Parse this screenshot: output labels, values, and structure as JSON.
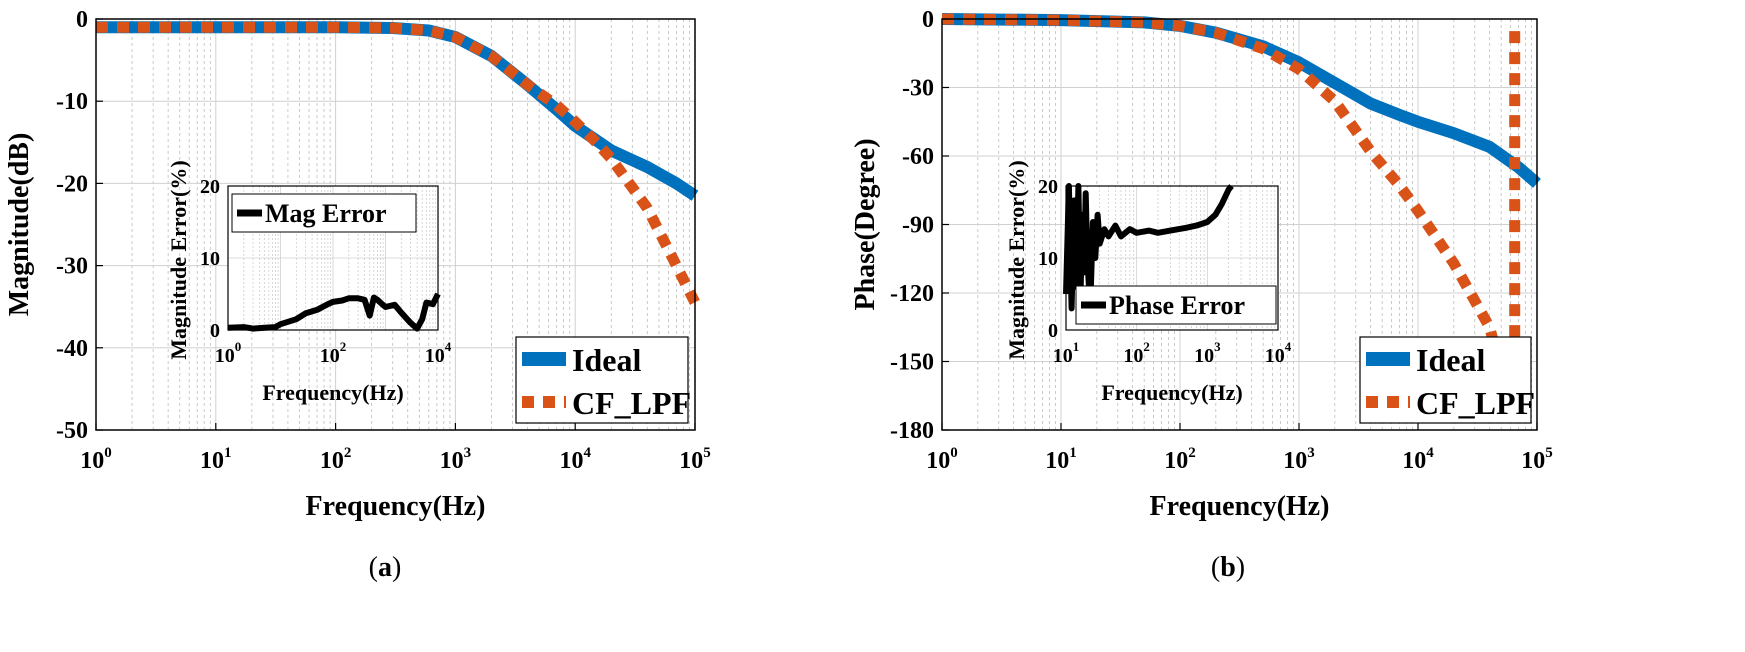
{
  "chart_data": [
    {
      "id": "a",
      "type": "line",
      "caption_prefix": "(",
      "caption_letter": "a",
      "caption_suffix": ")",
      "xlabel": "Frequency(Hz)",
      "ylabel": "Magnitude(dB)",
      "xscale": "log",
      "xlim": [
        1,
        100000
      ],
      "ylim": [
        -50,
        0
      ],
      "yticks": [
        0,
        -10,
        -20,
        -30,
        -40,
        -50
      ],
      "xtick_exponents": [
        0,
        1,
        2,
        3,
        4,
        5
      ],
      "xtick_base": "10",
      "grid": true,
      "legend_position": "bottom-right",
      "series": [
        {
          "name": "Ideal",
          "color": "#0072BD",
          "style": "solid",
          "x": [
            1,
            10,
            100,
            300,
            600,
            1000,
            2000,
            4000,
            7000,
            10000,
            20000,
            40000,
            70000,
            100000
          ],
          "y": [
            -1,
            -1,
            -1,
            -1.1,
            -1.4,
            -2.2,
            -4.5,
            -8,
            -11,
            -13,
            -16,
            -18,
            -20,
            -21.5
          ]
        },
        {
          "name": "CF_LPF",
          "color": "#D95319",
          "style": "dotted",
          "x": [
            1,
            10,
            100,
            300,
            600,
            1000,
            2000,
            4000,
            7000,
            10000,
            15000,
            20000,
            40000,
            70000,
            100000
          ],
          "y": [
            -1,
            -1,
            -1,
            -1.1,
            -1.4,
            -2.2,
            -4.5,
            -8,
            -10.5,
            -12.5,
            -15,
            -17,
            -23,
            -30,
            -34.5
          ]
        }
      ],
      "inset": {
        "xlabel": "Frequency(Hz)",
        "ylabel": "Magnitude Error(%)",
        "xscale": "log",
        "xlim": [
          1,
          10000
        ],
        "ylim": [
          0,
          20
        ],
        "yticks": [
          0,
          10,
          20
        ],
        "xtick_exponents": [
          0,
          2,
          4
        ],
        "xtick_base": "10",
        "legend_position": "top-left",
        "series": [
          {
            "name": "Mag Error",
            "color": "#000000",
            "x": [
              1,
              2,
              3,
              5,
              8,
              10,
              20,
              30,
              50,
              80,
              100,
              150,
              200,
              300,
              400,
              500,
              600,
              700,
              800,
              1000,
              1500,
              2000,
              3000,
              4000,
              5000,
              6000,
              8000,
              10000
            ],
            "y": [
              0.3,
              0.4,
              0.2,
              0.3,
              0.4,
              0.8,
              1.5,
              2.3,
              2.8,
              3.6,
              3.9,
              4.1,
              4.4,
              4.4,
              4.2,
              2.0,
              4.5,
              4.2,
              3.8,
              3.2,
              3.5,
              2.4,
              1.0,
              0.2,
              1.5,
              3.8,
              3.6,
              5.0
            ]
          }
        ]
      }
    },
    {
      "id": "b",
      "type": "line",
      "caption_prefix": "(",
      "caption_letter": "b",
      "caption_suffix": ")",
      "xlabel": "Frequency(Hz)",
      "ylabel": "Phase(Degree)",
      "xscale": "log",
      "xlim": [
        1,
        100000
      ],
      "ylim": [
        -180,
        0
      ],
      "yticks": [
        0,
        -30,
        -60,
        -90,
        -120,
        -150,
        -180
      ],
      "xtick_exponents": [
        0,
        1,
        2,
        3,
        4,
        5
      ],
      "xtick_base": "10",
      "grid": true,
      "legend_position": "bottom-right",
      "series": [
        {
          "name": "Ideal",
          "color": "#0072BD",
          "style": "solid",
          "x": [
            1,
            10,
            50,
            100,
            200,
            500,
            1000,
            2000,
            4000,
            7000,
            10000,
            20000,
            40000,
            70000,
            100000
          ],
          "y": [
            0,
            -0.5,
            -1.5,
            -3,
            -6,
            -12,
            -19,
            -28,
            -37,
            -42,
            -45,
            -50,
            -56,
            -65,
            -72
          ]
        },
        {
          "name": "CF_LPF",
          "color": "#D95319",
          "style": "dotted",
          "x": [
            1,
            10,
            50,
            100,
            200,
            500,
            1000,
            2000,
            4000,
            7000,
            10000,
            20000,
            40000,
            45000,
            60000,
            65000,
            65000
          ],
          "y": [
            0,
            -0.5,
            -1.5,
            -3,
            -6,
            -13,
            -22,
            -36,
            -58,
            -73,
            -84,
            -107,
            -135,
            -145,
            -150,
            -145,
            -3
          ]
        }
      ],
      "inset": {
        "xlabel": "Frequency(Hz)",
        "ylabel": "Magnitude Error(%)",
        "xscale": "log",
        "xlim": [
          10,
          10000
        ],
        "ylim": [
          0,
          20
        ],
        "yticks": [
          0,
          10,
          20
        ],
        "xtick_exponents": [
          1,
          2,
          3,
          4
        ],
        "xtick_base": "10",
        "legend_position": "bottom-left",
        "series": [
          {
            "name": "Phase Error",
            "color": "#000000",
            "x": [
              10,
              11,
              12,
              13,
              14,
              15,
              16,
              17,
              18,
              19,
              20,
              22,
              24,
              26,
              28,
              30,
              35,
              40,
              50,
              60,
              80,
              100,
              150,
              200,
              300,
              500,
              700,
              1000,
              1300,
              1600,
              2000,
              2200
            ],
            "y": [
              5,
              20,
              3,
              18,
              6,
              20,
              4,
              16,
              8,
              19,
              10,
              3,
              15,
              10,
              16,
              12,
              14,
              13,
              14.5,
              13,
              14,
              13.5,
              13.8,
              13.5,
              13.8,
              14.2,
              14.5,
              15.0,
              16.0,
              17.5,
              19.5,
              20
            ]
          }
        ]
      }
    }
  ]
}
